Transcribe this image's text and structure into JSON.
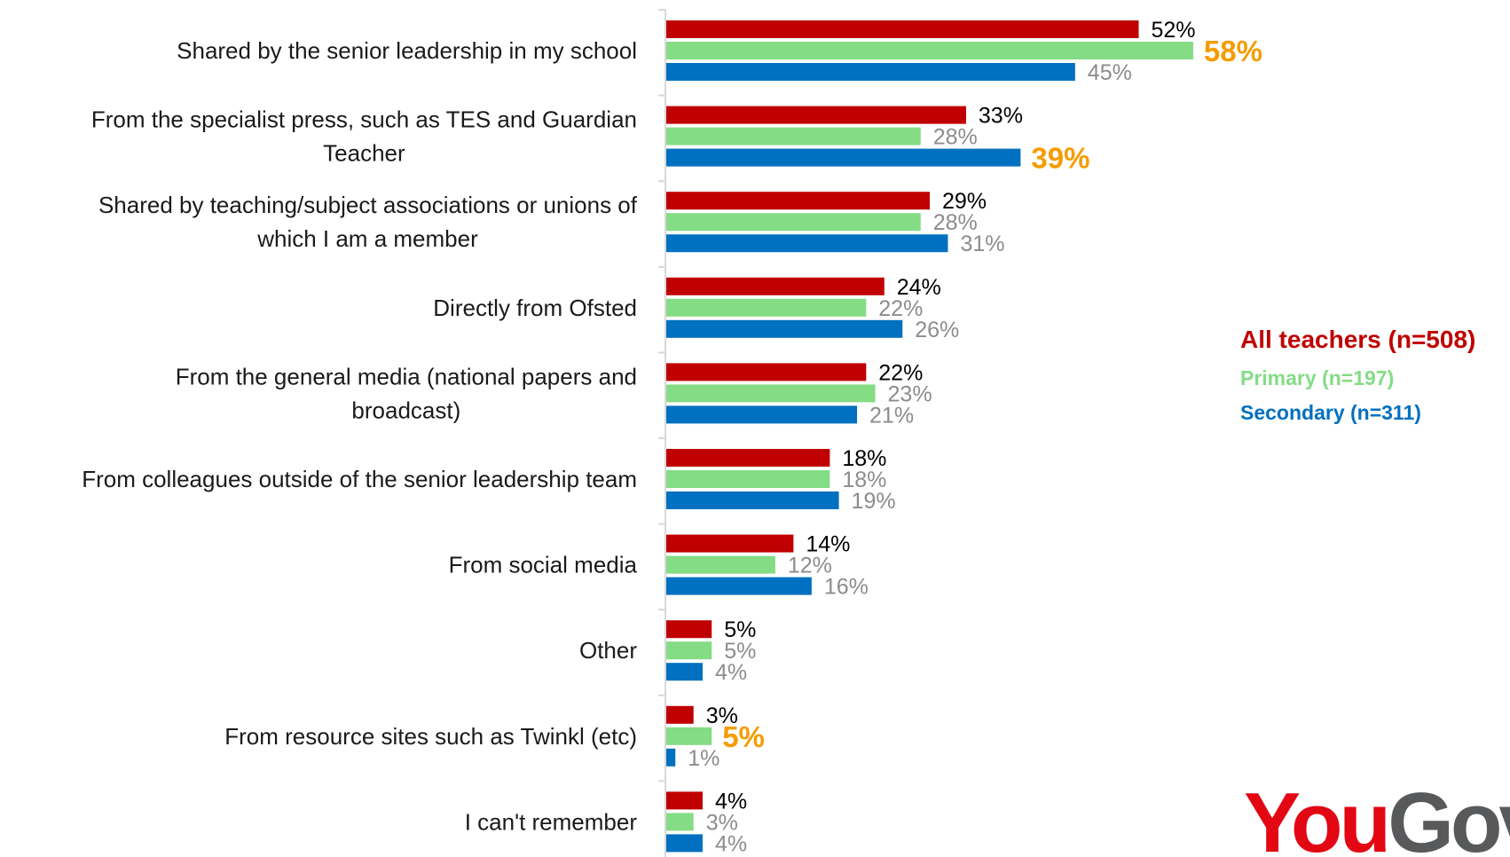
{
  "chart_data": {
    "type": "bar",
    "orientation": "horizontal",
    "categories": [
      "Shared by the senior leadership in my school",
      "From the specialist press, such as TES and Guardian Teacher",
      "Shared by teaching/subject associations or unions of which I am a member",
      "Directly from Ofsted",
      "From the general media (national papers and broadcast)",
      "From colleagues outside of the senior leadership team",
      "From social media",
      "Other",
      "From resource sites such as Twinkl (etc)",
      "I can't remember"
    ],
    "category_lines": [
      [
        "Shared by the senior leadership in my school"
      ],
      [
        "From the specialist press, such as TES and Guardian",
        "Teacher"
      ],
      [
        "Shared by teaching/subject associations or unions of",
        "which I am a member"
      ],
      [
        "Directly from Ofsted"
      ],
      [
        "From the general media (national papers and",
        "broadcast)"
      ],
      [
        "From colleagues outside of the senior leadership team"
      ],
      [
        "From social media"
      ],
      [
        "Other"
      ],
      [
        "From resource sites such as Twinkl (etc)"
      ],
      [
        "I can't remember"
      ]
    ],
    "series": [
      {
        "name": "All teachers (n=508)",
        "color": "#c00000",
        "values": [
          52,
          33,
          29,
          24,
          22,
          18,
          14,
          5,
          3,
          4
        ]
      },
      {
        "name": "Primary (n=197)",
        "color": "#84dc84",
        "values": [
          58,
          28,
          28,
          22,
          23,
          18,
          12,
          5,
          5,
          3
        ]
      },
      {
        "name": "Secondary (n=311)",
        "color": "#0070c0",
        "values": [
          45,
          39,
          31,
          26,
          21,
          19,
          16,
          4,
          1,
          4
        ]
      }
    ],
    "highlights": [
      {
        "series": 1,
        "category": 0
      },
      {
        "series": 2,
        "category": 1
      },
      {
        "series": 1,
        "category": 8
      }
    ],
    "colors": {
      "all_label": "#000000",
      "subgroup_label": "#8c8c8c",
      "highlight_label": "#f59c00",
      "axis": "#d9d9d9"
    },
    "value_suffix": "%",
    "xlim": [
      0,
      100
    ],
    "legend_position": "right",
    "legend_colors": [
      "#c00000",
      "#84dc84",
      "#0070c0"
    ]
  },
  "logo": {
    "part1": "You",
    "part2": "Gov"
  }
}
